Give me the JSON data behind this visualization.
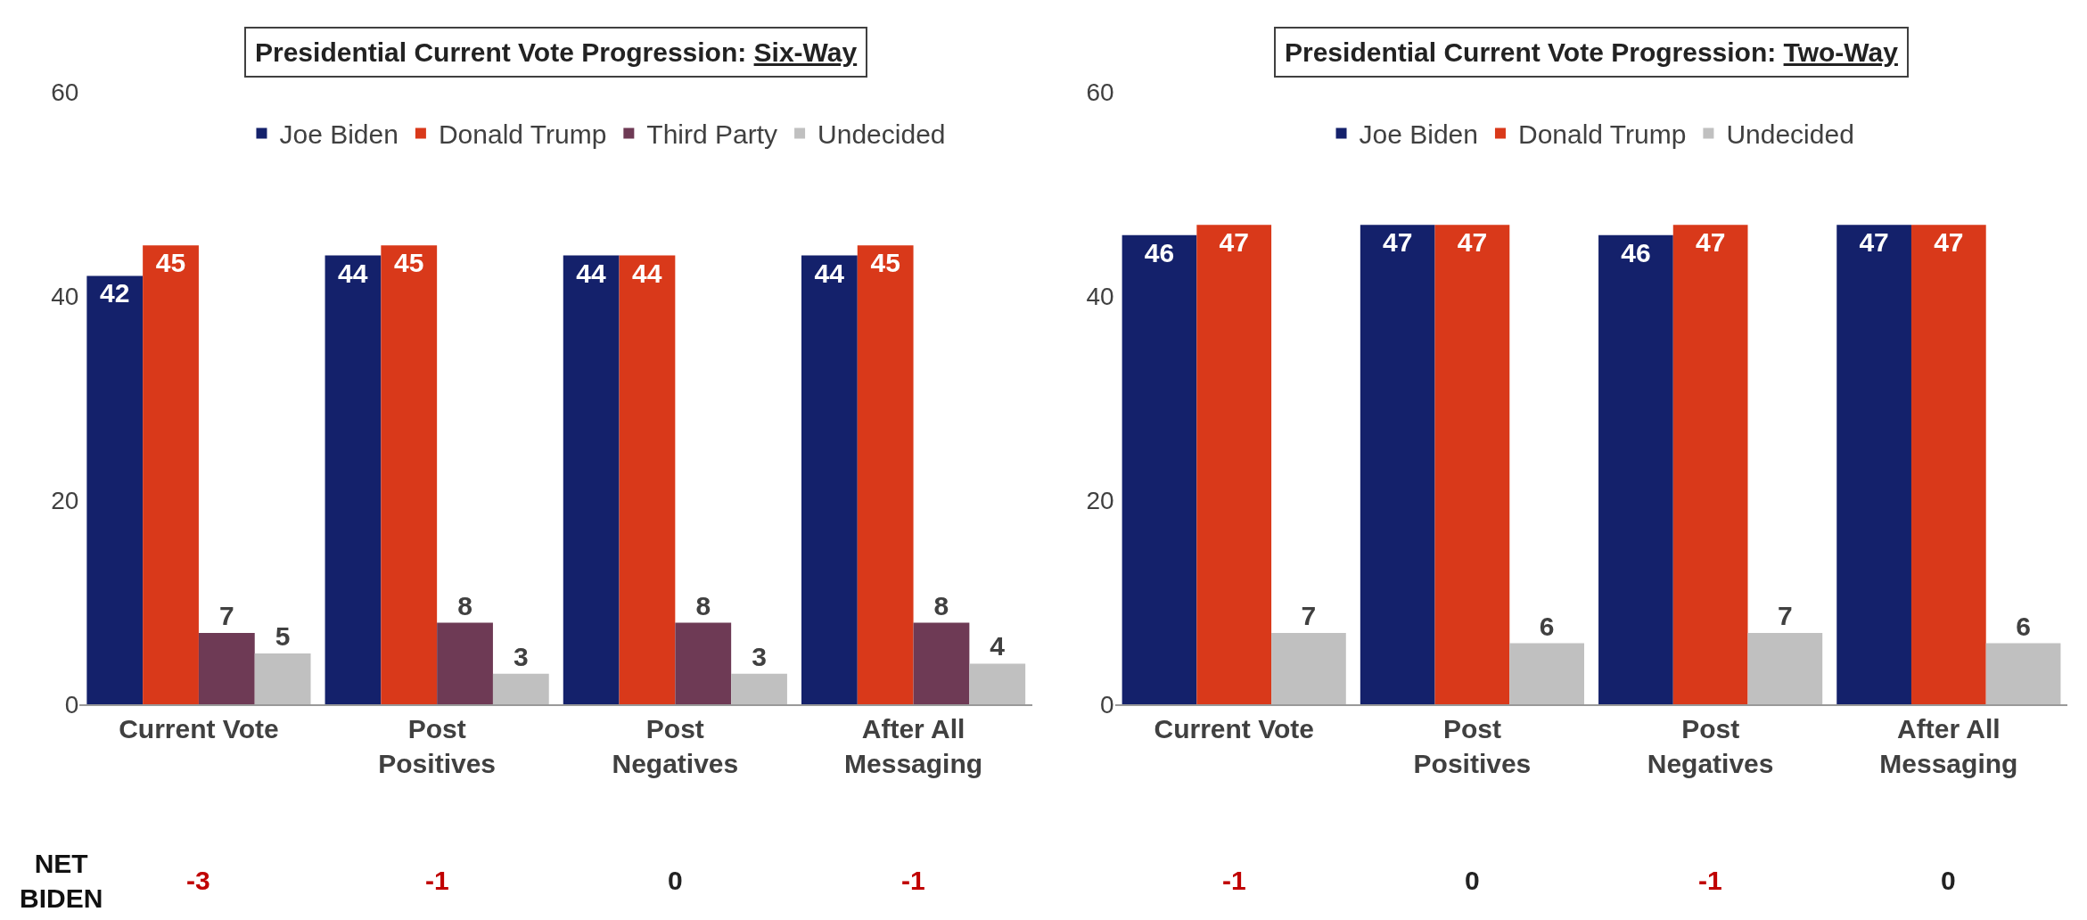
{
  "chart_data": [
    {
      "type": "bar",
      "title": "Presidential Current Vote Progression: Six-Way",
      "categories": [
        "Current Vote",
        "Post Positives",
        "Post Negatives",
        "After All Messaging"
      ],
      "series": [
        {
          "name": "Joe Biden",
          "color": "#14216b",
          "values": [
            42,
            44,
            44,
            44
          ]
        },
        {
          "name": "Donald Trump",
          "color": "#d9391a",
          "values": [
            45,
            45,
            44,
            45
          ]
        },
        {
          "name": "Third Party",
          "color": "#6e3a55",
          "values": [
            7,
            8,
            8,
            8
          ]
        },
        {
          "name": "Undecided",
          "color": "#c0c0c0",
          "values": [
            5,
            3,
            3,
            4
          ]
        }
      ],
      "ylim": [
        0,
        60
      ],
      "yticks": [
        0,
        20,
        40,
        60
      ],
      "legend": "top",
      "data_labels": true,
      "annotations": [
        "NET BIDEN",
        "-3",
        "-1",
        "0",
        "-1"
      ]
    },
    {
      "type": "bar",
      "title": "Presidential Current Vote Progression: Two-Way",
      "categories": [
        "Current Vote",
        "Post Positives",
        "Post Negatives",
        "After All Messaging"
      ],
      "series": [
        {
          "name": "Joe Biden",
          "color": "#14216b",
          "values": [
            46,
            47,
            46,
            47
          ]
        },
        {
          "name": "Donald Trump",
          "color": "#d9391a",
          "values": [
            47,
            47,
            47,
            47
          ]
        },
        {
          "name": "Undecided",
          "color": "#c0c0c0",
          "values": [
            7,
            6,
            7,
            6
          ]
        }
      ],
      "ylim": [
        0,
        60
      ],
      "yticks": [
        0,
        20,
        40,
        60
      ],
      "legend": "top",
      "data_labels": true,
      "annotations": [
        "-1",
        "0",
        "-1",
        "0"
      ]
    }
  ]
}
